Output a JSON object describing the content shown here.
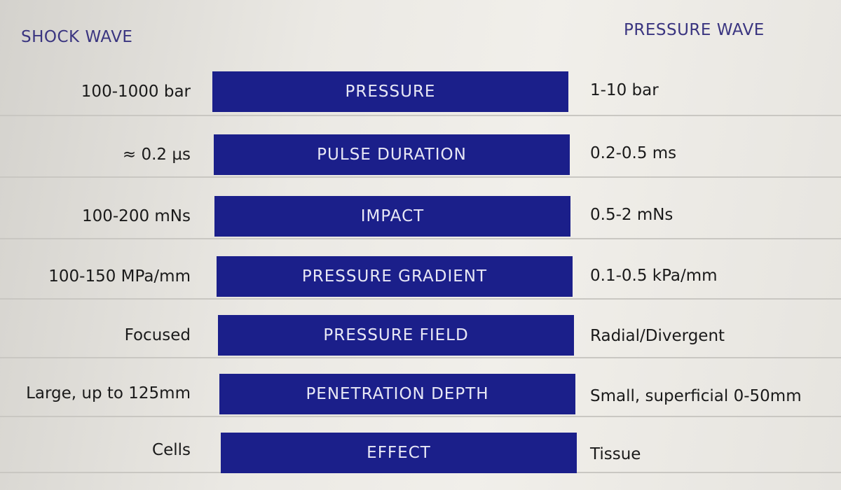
{
  "headers": {
    "left": "SHOCK WAVE",
    "right": "PRESSURE WAVE"
  },
  "rows": [
    {
      "parameter": "PRESSURE",
      "shock": "100-1000 bar",
      "pressure": "1-10 bar"
    },
    {
      "parameter": "PULSE DURATION",
      "shock": "≈ 0.2 µs",
      "pressure": "0.2-0.5 ms"
    },
    {
      "parameter": "IMPACT",
      "shock": "100-200 mNs",
      "pressure": "0.5-2 mNs"
    },
    {
      "parameter": "PRESSURE GRADIENT",
      "shock": "100-150 MPa/mm",
      "pressure": "0.1-0.5 kPa/mm"
    },
    {
      "parameter": "PRESSURE FIELD",
      "shock": "Focused",
      "pressure": "Radial/Divergent"
    },
    {
      "parameter": "PENETRATION DEPTH",
      "shock": "Large, up to 125mm",
      "pressure": "Small, superficial 0-50mm"
    },
    {
      "parameter": "EFFECT",
      "shock": "Cells",
      "pressure": "Tissue"
    }
  ],
  "colors": {
    "band": "#1b1f8a",
    "header_text": "#3a3580",
    "background": "#ebe9e4"
  }
}
